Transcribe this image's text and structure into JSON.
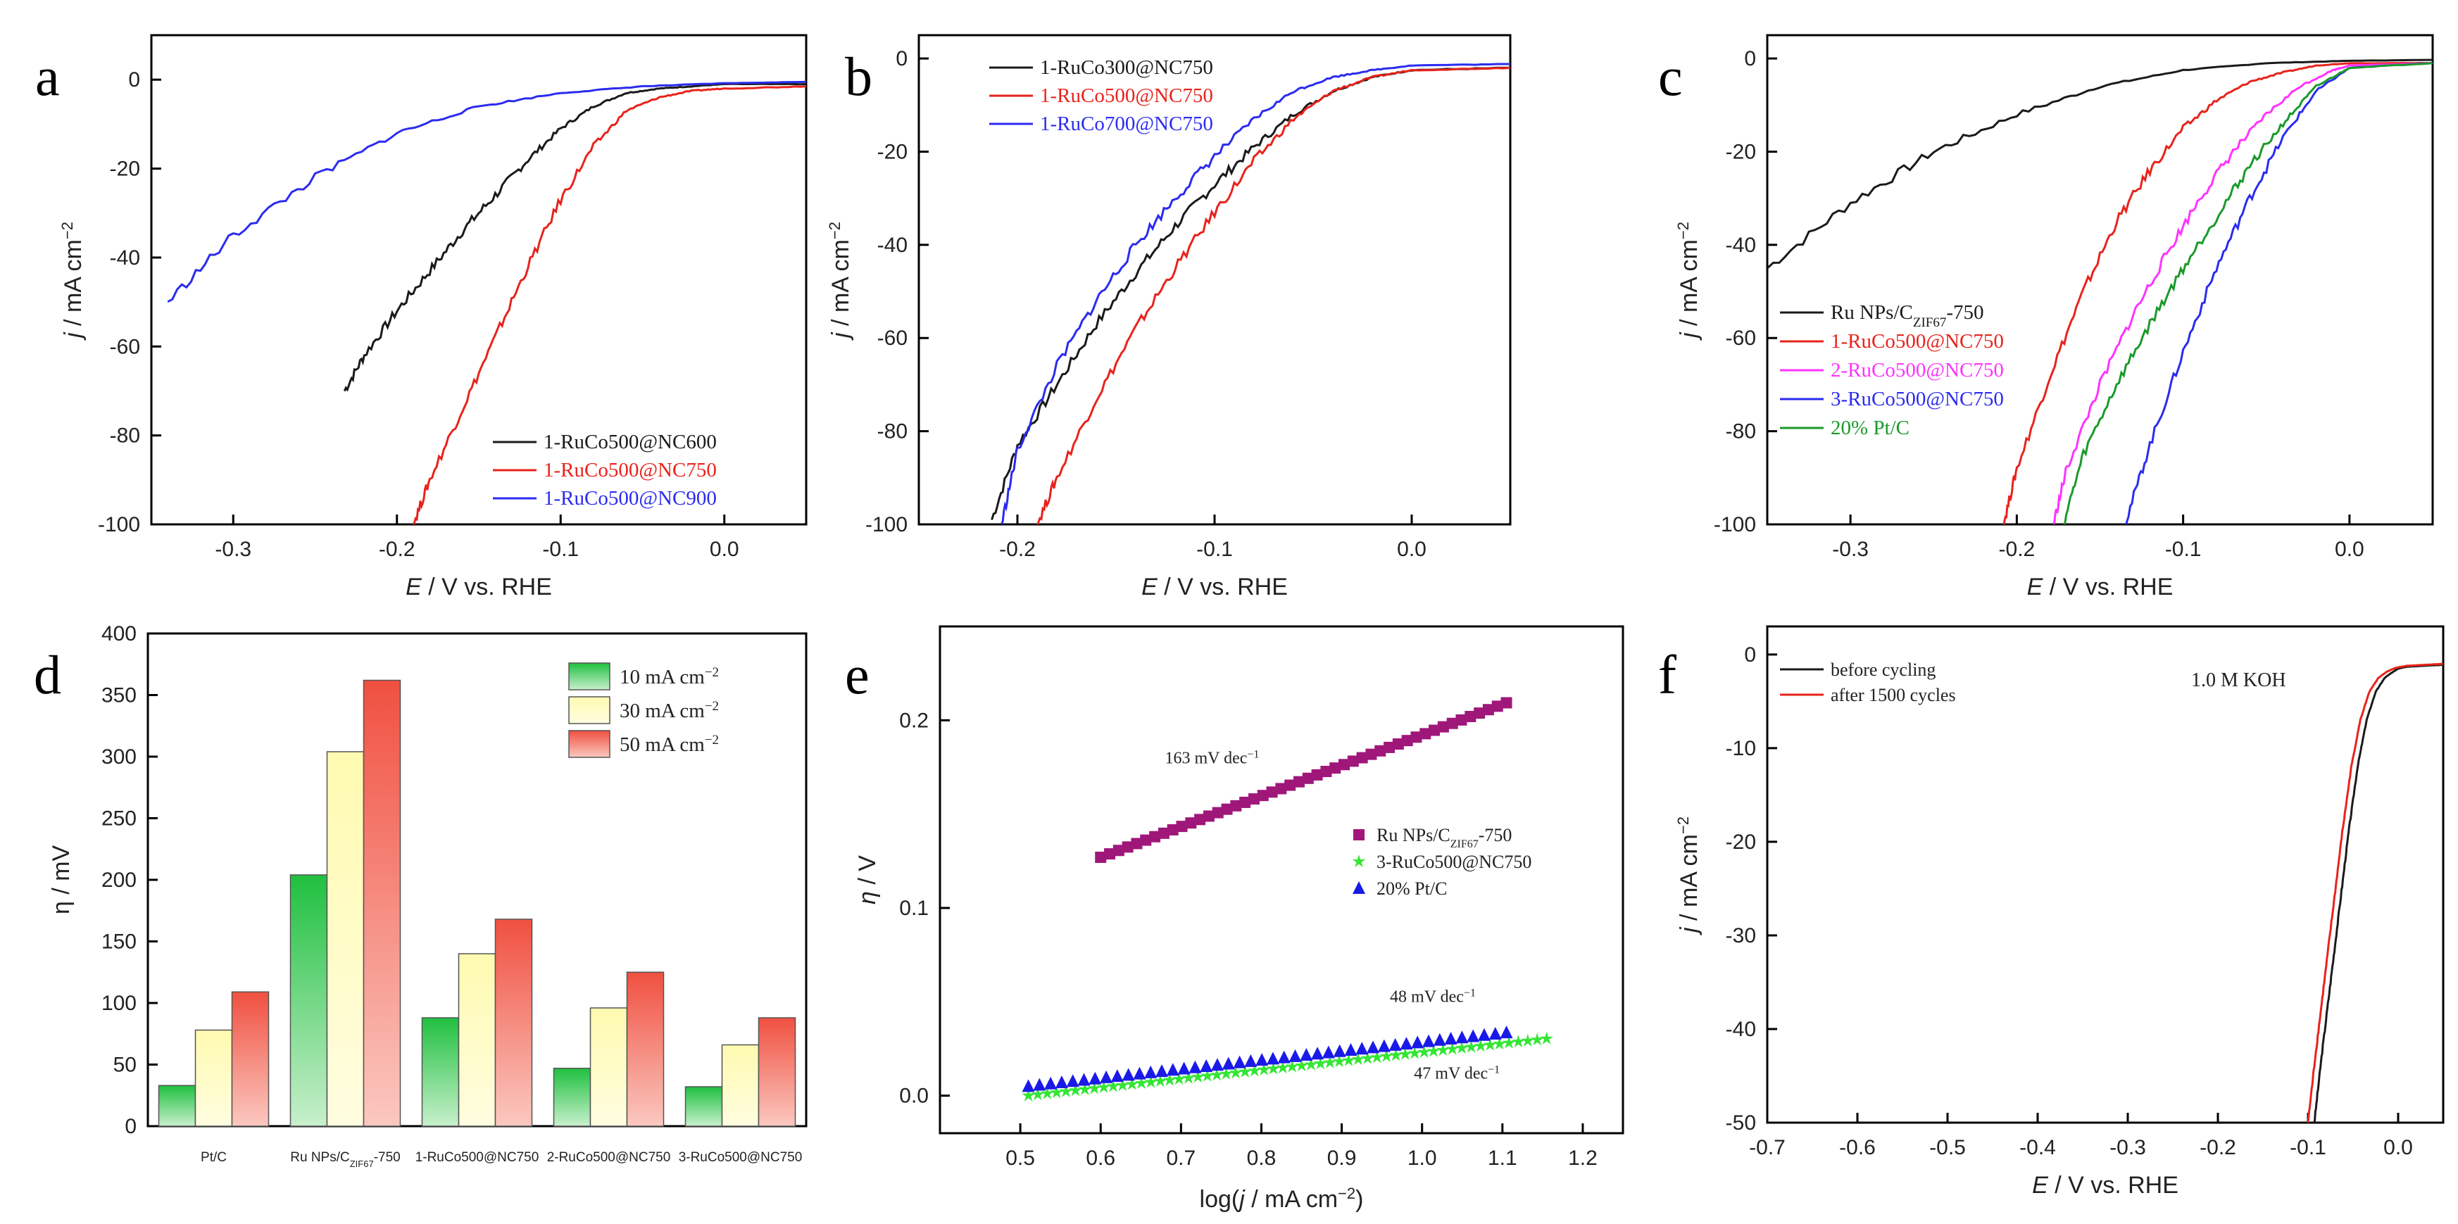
{
  "chart_data": [
    {
      "panel": "a",
      "type": "line",
      "xlabel_italic": "E",
      "xlabel_rest": " / V vs. RHE",
      "ylabel_italic": "j",
      "ylabel_rest": " / mA cm",
      "ylabel_sup": "−2",
      "xlim": [
        -0.35,
        0.05
      ],
      "ylim": [
        -100,
        10
      ],
      "xticks": [
        -0.3,
        -0.2,
        -0.1,
        0.0
      ],
      "xtick_labels": [
        "-0.3",
        "-0.2",
        "-0.1",
        "0.0"
      ],
      "yticks": [
        0,
        -20,
        -40,
        -60,
        -80,
        -100
      ],
      "ytick_labels": [
        "0",
        "-20",
        "-40",
        "-60",
        "-80",
        "-100"
      ],
      "legend_position": "bottom-right",
      "series": [
        {
          "name": "1-RuCo500@NC600",
          "color": "#1a1a1a",
          "x": [
            -0.232,
            -0.22,
            -0.2,
            -0.18,
            -0.16,
            -0.14,
            -0.12,
            -0.1,
            -0.08,
            -0.06,
            -0.04,
            -0.02,
            0.0,
            0.05
          ],
          "y": [
            -70,
            -62,
            -52,
            -43,
            -34,
            -26,
            -18,
            -11,
            -6,
            -3,
            -2,
            -1.5,
            -1,
            -1
          ]
        },
        {
          "name": "1-RuCo500@NC750",
          "color": "#e8231c",
          "x": [
            -0.19,
            -0.18,
            -0.16,
            -0.14,
            -0.12,
            -0.1,
            -0.08,
            -0.06,
            -0.04,
            -0.02,
            0.0,
            0.05
          ],
          "y": [
            -100,
            -90,
            -74,
            -58,
            -42,
            -27,
            -15,
            -7,
            -4,
            -2.5,
            -2,
            -1.5
          ]
        },
        {
          "name": "1-RuCo500@NC900",
          "color": "#2b2bf0",
          "x": [
            -0.34,
            -0.3,
            -0.25,
            -0.2,
            -0.15,
            -0.1,
            -0.05,
            0.0,
            0.05
          ],
          "y": [
            -50,
            -35,
            -22,
            -12,
            -6,
            -3,
            -1.5,
            -0.8,
            -0.5
          ]
        }
      ]
    },
    {
      "panel": "b",
      "type": "line",
      "xlabel_italic": "E",
      "xlabel_rest": " / V vs. RHE",
      "ylabel_italic": "j",
      "ylabel_rest": " / mA cm",
      "ylabel_sup": "−2",
      "xlim": [
        -0.25,
        0.05
      ],
      "ylim": [
        -100,
        5
      ],
      "xticks": [
        -0.2,
        -0.1,
        0.0
      ],
      "xtick_labels": [
        "-0.2",
        "-0.1",
        "0.0"
      ],
      "yticks": [
        0,
        -20,
        -40,
        -60,
        -80,
        -100
      ],
      "ytick_labels": [
        "0",
        "-20",
        "-40",
        "-60",
        "-80",
        "-100"
      ],
      "legend_position": "top-left",
      "series": [
        {
          "name": "1-RuCo300@NC750",
          "color": "#1a1a1a",
          "x": [
            -0.213,
            -0.2,
            -0.18,
            -0.16,
            -0.14,
            -0.12,
            -0.1,
            -0.08,
            -0.06,
            -0.04,
            -0.02,
            0.0,
            0.05
          ],
          "y": [
            -99,
            -83,
            -70,
            -57,
            -46,
            -36,
            -27,
            -19,
            -12,
            -7,
            -4,
            -2.5,
            -2
          ]
        },
        {
          "name": "1-RuCo500@NC750",
          "color": "#e8231c",
          "x": [
            -0.19,
            -0.18,
            -0.16,
            -0.14,
            -0.12,
            -0.1,
            -0.08,
            -0.06,
            -0.04,
            -0.02,
            0.0,
            0.05
          ],
          "y": [
            -100,
            -90,
            -73,
            -58,
            -45,
            -33,
            -22,
            -13,
            -7,
            -4,
            -2.5,
            -2
          ]
        },
        {
          "name": "1-RuCo700@NC750",
          "color": "#2b2bf0",
          "x": [
            -0.208,
            -0.2,
            -0.18,
            -0.16,
            -0.14,
            -0.12,
            -0.1,
            -0.08,
            -0.06,
            -0.04,
            -0.02,
            0.0,
            0.05
          ],
          "y": [
            -100,
            -84,
            -66,
            -52,
            -40,
            -30,
            -21,
            -13,
            -7,
            -4,
            -2.5,
            -1.5,
            -1.2
          ]
        }
      ]
    },
    {
      "panel": "c",
      "type": "line",
      "xlabel_italic": "E",
      "xlabel_rest": " / V vs. RHE",
      "ylabel_italic": "j",
      "ylabel_rest": " / mA cm",
      "ylabel_sup": "−2",
      "xlim": [
        -0.35,
        0.05
      ],
      "ylim": [
        -100,
        5
      ],
      "xticks": [
        -0.3,
        -0.2,
        -0.1,
        0.0
      ],
      "xtick_labels": [
        "-0.3",
        "-0.2",
        "-0.1",
        "0.0"
      ],
      "yticks": [
        0,
        -20,
        -40,
        -60,
        -80,
        -100
      ],
      "ytick_labels": [
        "0",
        "-20",
        "-40",
        "-60",
        "-80",
        "-100"
      ],
      "legend_position": "middle-left",
      "series": [
        {
          "name_main": "Ru NPs/C",
          "name_sub": "ZIF67",
          "name_tail": "-750",
          "color": "#1a1a1a",
          "x": [
            -0.35,
            -0.3,
            -0.25,
            -0.2,
            -0.15,
            -0.1,
            -0.05,
            0.0,
            0.05
          ],
          "y": [
            -45,
            -31,
            -20,
            -12,
            -6,
            -2.5,
            -1,
            -0.5,
            -0.3
          ]
        },
        {
          "name": "1-RuCo500@NC750",
          "color": "#e8231c",
          "x": [
            -0.208,
            -0.2,
            -0.18,
            -0.16,
            -0.14,
            -0.12,
            -0.1,
            -0.08,
            -0.06,
            -0.04,
            -0.02,
            0.0,
            0.05
          ],
          "y": [
            -100,
            -88,
            -68,
            -50,
            -35,
            -24,
            -15,
            -9,
            -5,
            -3,
            -1.5,
            -1,
            -1
          ]
        },
        {
          "name": "2-RuCo500@NC750",
          "color": "#ff33ff",
          "x": [
            -0.178,
            -0.17,
            -0.15,
            -0.13,
            -0.11,
            -0.09,
            -0.07,
            -0.05,
            -0.03,
            -0.01,
            0.0,
            0.05
          ],
          "y": [
            -100,
            -88,
            -70,
            -55,
            -42,
            -30,
            -20,
            -12,
            -6,
            -2.5,
            -1.5,
            -1
          ]
        },
        {
          "name": "3-RuCo500@NC750",
          "color": "#2b2bf0",
          "x": [
            -0.135,
            -0.12,
            -0.1,
            -0.08,
            -0.06,
            -0.04,
            -0.02,
            0.0,
            0.05
          ],
          "y": [
            -100,
            -83,
            -63,
            -45,
            -30,
            -17,
            -7,
            -2,
            -1
          ]
        },
        {
          "name": "20% Pt/C",
          "color": "#1a9a2a",
          "x": [
            -0.172,
            -0.16,
            -0.14,
            -0.12,
            -0.1,
            -0.08,
            -0.06,
            -0.04,
            -0.02,
            0.0,
            0.05
          ],
          "y": [
            -100,
            -85,
            -70,
            -57,
            -45,
            -34,
            -23,
            -14,
            -6,
            -2,
            -1
          ]
        }
      ]
    },
    {
      "panel": "d",
      "type": "bar",
      "ylabel": "η / mV",
      "ylim": [
        0,
        400
      ],
      "yticks": [
        0,
        50,
        100,
        150,
        200,
        250,
        300,
        350,
        400
      ],
      "ytick_labels": [
        "0",
        "50",
        "100",
        "150",
        "200",
        "250",
        "300",
        "350",
        "400"
      ],
      "categories": [
        "Pt/C",
        "Ru NPs/C",
        "1-RuCo500@NC750",
        "2-RuCo500@NC750",
        "3-RuCo500@NC750"
      ],
      "category_sub": [
        "",
        "ZIF67",
        "",
        "",
        ""
      ],
      "category_tail": [
        "",
        "-750",
        "",
        "",
        ""
      ],
      "legend_position": "top-right",
      "series": [
        {
          "name_main": "10 mA cm",
          "name_sup": "−2",
          "color_top": "#20c040",
          "color_bottom": "#c8f0cc",
          "values": [
            33,
            204,
            88,
            47,
            32
          ]
        },
        {
          "name_main": "30 mA cm",
          "name_sup": "−2",
          "color_top": "#fffab0",
          "color_bottom": "#fffde0",
          "values": [
            78,
            304,
            140,
            96,
            66
          ]
        },
        {
          "name_main": "50 mA cm",
          "name_sup": "−2",
          "color_top": "#f05040",
          "color_bottom": "#fbc8c0",
          "values": [
            109,
            362,
            168,
            125,
            88
          ]
        }
      ]
    },
    {
      "panel": "e",
      "type": "scatter",
      "xlabel_pre": "log(",
      "xlabel_italic": "j",
      "xlabel_rest": " / mA cm",
      "xlabel_sup": "−2",
      "xlabel_post": ")",
      "ylabel": "η / V",
      "xlim": [
        0.4,
        1.25
      ],
      "ylim": [
        -0.02,
        0.25
      ],
      "xticks": [
        0.5,
        0.6,
        0.7,
        0.8,
        0.9,
        1.0,
        1.1,
        1.2
      ],
      "xtick_labels": [
        "0.5",
        "0.6",
        "0.7",
        "0.8",
        "0.9",
        "1.0",
        "1.1",
        "1.2"
      ],
      "yticks": [
        0.0,
        0.1,
        0.2
      ],
      "ytick_labels": [
        "0.0",
        "0.1",
        "0.2"
      ],
      "legend_position": "center-right",
      "annotations": [
        {
          "text_main": "163 mV dec",
          "text_sup": "−1",
          "x": 0.68,
          "y": 0.177
        },
        {
          "text_main": "48 mV dec",
          "text_sup": "−1",
          "x": 0.96,
          "y": 0.05
        },
        {
          "text_main": "47 mV dec",
          "text_sup": "−1",
          "x": 0.99,
          "y": 0.009
        }
      ],
      "series": [
        {
          "name_main": "Ru NPs/C",
          "name_sub": "ZIF67",
          "name_tail": "-750",
          "color": "#a0177a",
          "marker": "square",
          "x_start": 0.6,
          "x_end": 1.105,
          "slope": 0.163,
          "intercept": 0.127,
          "n": 46
        },
        {
          "name": "3-RuCo500@NC750",
          "color": "#33e633",
          "marker": "star",
          "x_start": 0.51,
          "x_end": 1.155,
          "slope": 0.047,
          "intercept": 0.0,
          "n": 56
        },
        {
          "name": "20% Pt/C",
          "color": "#1a1ae8",
          "marker": "triangle",
          "x_start": 0.51,
          "x_end": 1.105,
          "slope": 0.048,
          "intercept": 0.005,
          "n": 44
        }
      ]
    },
    {
      "panel": "f",
      "type": "line",
      "xlabel_italic": "E",
      "xlabel_rest": " / V vs. RHE",
      "ylabel_italic": "j",
      "ylabel_rest": " / mA cm",
      "ylabel_sup": "−2",
      "xlim": [
        -0.7,
        0.05
      ],
      "ylim": [
        -50,
        3
      ],
      "xticks": [
        -0.7,
        -0.6,
        -0.5,
        -0.4,
        -0.3,
        -0.2,
        -0.1,
        0.0
      ],
      "xtick_labels": [
        "-0.7",
        "-0.6",
        "-0.5",
        "-0.4",
        "-0.3",
        "-0.2",
        "-0.1",
        "0.0"
      ],
      "yticks": [
        0,
        -10,
        -20,
        -30,
        -40,
        -50
      ],
      "ytick_labels": [
        "0",
        "-10",
        "-20",
        "-30",
        "-40",
        "-50"
      ],
      "annotation": "1.0 M KOH",
      "legend_position": "top-left",
      "series": [
        {
          "name": "before cycling",
          "color": "#1a1a1a",
          "x": [
            -0.093,
            -0.085,
            -0.075,
            -0.065,
            -0.055,
            -0.045,
            -0.035,
            -0.025,
            -0.015,
            -0.005,
            0.0,
            0.01,
            0.03,
            0.05
          ],
          "y": [
            -50,
            -43,
            -35,
            -27,
            -19,
            -12,
            -7,
            -4,
            -2.5,
            -1.8,
            -1.5,
            -1.3,
            -1.2,
            -1.1
          ]
        },
        {
          "name": "after 1500 cycles",
          "color": "#e8231c",
          "x": [
            -0.1,
            -0.092,
            -0.082,
            -0.072,
            -0.062,
            -0.052,
            -0.042,
            -0.032,
            -0.022,
            -0.012,
            -0.002,
            0.01,
            0.03,
            0.05
          ],
          "y": [
            -50,
            -43,
            -35,
            -27,
            -19,
            -12,
            -7,
            -4,
            -2.5,
            -1.8,
            -1.4,
            -1.2,
            -1.1,
            -1.0
          ]
        }
      ]
    }
  ]
}
